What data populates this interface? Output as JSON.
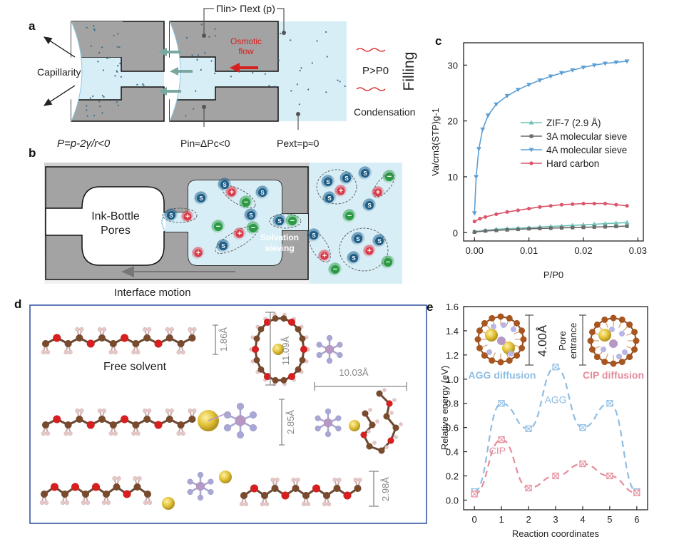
{
  "panel_a": {
    "label": "a",
    "pi_label": "Πin> Πext (p)",
    "capillarity": "Capillarity",
    "osmotic_flow_line1": "Osmotic",
    "osmotic_flow_line2": "flow",
    "p_gt_p0": "P>P0",
    "filling": "Filling",
    "condensation": "Condensation",
    "laplace": "P=p-2γ/r<0",
    "p_in": "Pin≈ΔPc<0",
    "p_ext": "Pext=p≈0"
  },
  "panel_b": {
    "label": "b",
    "ink_bottle_line1": "Ink-Bottle",
    "ink_bottle_line2": "Pores",
    "solvation_line1": "Solvation",
    "solvation_line2": "sieving",
    "interface_motion": "Interface motion",
    "solvent_symbol": "S",
    "cation_symbol": "+",
    "anion_symbol": "−"
  },
  "panel_c": {
    "label": "c",
    "chart_data": {
      "type": "line",
      "xlabel": "P/P0",
      "ylabel": "Va/cm3(STP)g-1",
      "xlim": [
        -0.002,
        0.031
      ],
      "ylim": [
        -1.5,
        34
      ],
      "x_ticks": [
        "0.00",
        "0.01",
        "0.02",
        "0.03"
      ],
      "y_ticks": [
        "0",
        "10",
        "20",
        "30"
      ],
      "legend_position": "center-right",
      "series": [
        {
          "name": "ZIF-7 (2.9 Å)",
          "color": "#6cc3b8",
          "marker": "triangle",
          "x": [
            0.0,
            0.002,
            0.004,
            0.006,
            0.008,
            0.01,
            0.012,
            0.014,
            0.016,
            0.018,
            0.02,
            0.022,
            0.024,
            0.026,
            0.028
          ],
          "y": [
            0.2,
            0.4,
            0.6,
            0.7,
            0.8,
            0.9,
            1.0,
            1.1,
            1.2,
            1.3,
            1.4,
            1.5,
            1.6,
            1.7,
            1.8
          ]
        },
        {
          "name": "3A molecular sieve",
          "color": "#6b6b6b",
          "marker": "square",
          "x": [
            0.0,
            0.002,
            0.004,
            0.006,
            0.008,
            0.01,
            0.012,
            0.014,
            0.016,
            0.018,
            0.02,
            0.022,
            0.024,
            0.026,
            0.028
          ],
          "y": [
            0.1,
            0.3,
            0.4,
            0.5,
            0.6,
            0.7,
            0.75,
            0.8,
            0.85,
            0.9,
            0.95,
            1.0,
            1.05,
            1.1,
            1.15
          ]
        },
        {
          "name": "4A molecular sieve",
          "color": "#5d9fd4",
          "marker": "triangle-down",
          "x": [
            0.0,
            0.0003,
            0.0008,
            0.0015,
            0.0025,
            0.004,
            0.006,
            0.008,
            0.01,
            0.012,
            0.014,
            0.016,
            0.018,
            0.02,
            0.022,
            0.024,
            0.026,
            0.028
          ],
          "y": [
            3.5,
            10.0,
            15.0,
            18.5,
            21.0,
            23.0,
            24.5,
            25.6,
            26.5,
            27.3,
            28.0,
            28.6,
            29.1,
            29.6,
            30.0,
            30.3,
            30.5,
            30.7
          ]
        },
        {
          "name": "Hard carbon",
          "color": "#d9566c",
          "marker": "circle",
          "x": [
            0.0,
            0.001,
            0.002,
            0.004,
            0.006,
            0.008,
            0.01,
            0.012,
            0.014,
            0.016,
            0.018,
            0.02,
            0.022,
            0.024,
            0.026,
            0.028
          ],
          "y": [
            2.0,
            2.5,
            2.8,
            3.3,
            3.7,
            4.0,
            4.3,
            4.6,
            4.8,
            5.0,
            5.1,
            5.2,
            5.2,
            5.2,
            5.0,
            4.8
          ]
        }
      ]
    }
  },
  "panel_d": {
    "label": "d",
    "free_solvent": "Free solvent",
    "dim_1": "1.86Å",
    "dim_2": "11.09Å",
    "dim_3": "10.03Å",
    "dim_4": "2.85Å",
    "dim_5": "2.98Å"
  },
  "panel_e": {
    "label": "e",
    "dim_4_00": "4.00Å",
    "pore_entrance_line1": "Pore",
    "pore_entrance_line2": "entrance",
    "agg_diffusion": "AGG diffusion",
    "cip_diffusion": "CIP diffusion",
    "chart_data": {
      "type": "line",
      "xlabel": "Reaction coordinates",
      "ylabel": "Relative energy (eV)",
      "xlim": [
        -0.4,
        6.4
      ],
      "ylim": [
        -0.08,
        1.6
      ],
      "x_ticks": [
        "0",
        "1",
        "2",
        "3",
        "4",
        "5",
        "6"
      ],
      "y_ticks": [
        "0.0",
        "0.2",
        "0.4",
        "0.6",
        "0.8",
        "1.0",
        "1.2",
        "1.4",
        "1.6"
      ],
      "series": [
        {
          "name": "AGG",
          "color": "#8fbde3",
          "x": [
            0,
            1,
            2,
            3,
            4,
            5,
            6
          ],
          "y": [
            0.07,
            0.8,
            0.59,
            1.1,
            0.6,
            0.8,
            0.07
          ]
        },
        {
          "name": "CIP",
          "color": "#e48d9b",
          "x": [
            0,
            1,
            2,
            3,
            4,
            5,
            6
          ],
          "y": [
            0.05,
            0.5,
            0.1,
            0.2,
            0.3,
            0.2,
            0.06
          ]
        }
      ]
    }
  },
  "colors": {
    "wall_gray": "#a3a3a3",
    "pore_fill": "#d8eef7",
    "hydrogen": "#e7c6c6",
    "carbon": "#7a4a2d",
    "oxygen": "#d81e1e",
    "sodium": "#e2c236",
    "phosphorus": "#b798c4",
    "fluorine": "#a8a7d6",
    "frame_blue": "#2c4e9e",
    "solvent_ball": "#1d5d86",
    "cation_ball": "#d83a48",
    "anion_ball": "#2c9a44"
  }
}
